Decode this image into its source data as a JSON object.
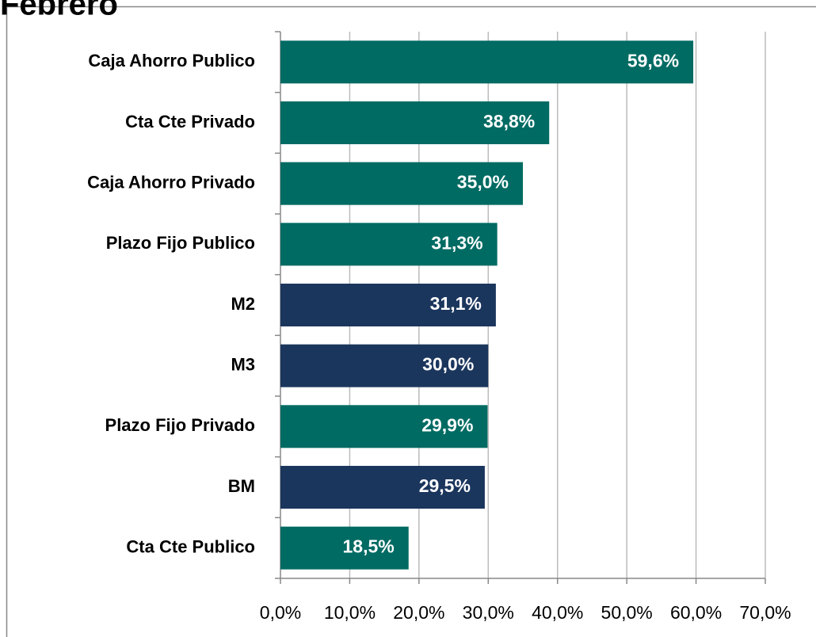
{
  "chart_data": {
    "type": "bar",
    "orientation": "horizontal",
    "title": "Febrero",
    "categories": [
      "Caja Ahorro Publico",
      "Cta Cte Privado",
      "Caja Ahorro Privado",
      "Plazo Fijo Publico",
      "M2",
      "M3",
      "Plazo Fijo Privado",
      "BM",
      "Cta Cte Publico"
    ],
    "values": [
      59.6,
      38.8,
      35.0,
      31.3,
      31.1,
      30.0,
      29.9,
      29.5,
      18.5
    ],
    "value_labels": [
      "59,6%",
      "38,8%",
      "35,0%",
      "31,3%",
      "31,1%",
      "30,0%",
      "29,9%",
      "29,5%",
      "18,5%"
    ],
    "colors": [
      "#006b63",
      "#006b63",
      "#006b63",
      "#006b63",
      "#1b365d",
      "#1b365d",
      "#006b63",
      "#1b365d",
      "#006b63"
    ],
    "xlim": [
      0,
      70
    ],
    "xticks": [
      {
        "value": 0,
        "label": "0,0%"
      },
      {
        "value": 10,
        "label": "10,0%"
      },
      {
        "value": 20,
        "label": "20,0%"
      },
      {
        "value": 30,
        "label": "30,0%"
      },
      {
        "value": 40,
        "label": "40,0%"
      },
      {
        "value": 50,
        "label": "50,0%"
      },
      {
        "value": 60,
        "label": "60,0%"
      },
      {
        "value": 70,
        "label": "70,0%"
      }
    ],
    "grid": true
  }
}
